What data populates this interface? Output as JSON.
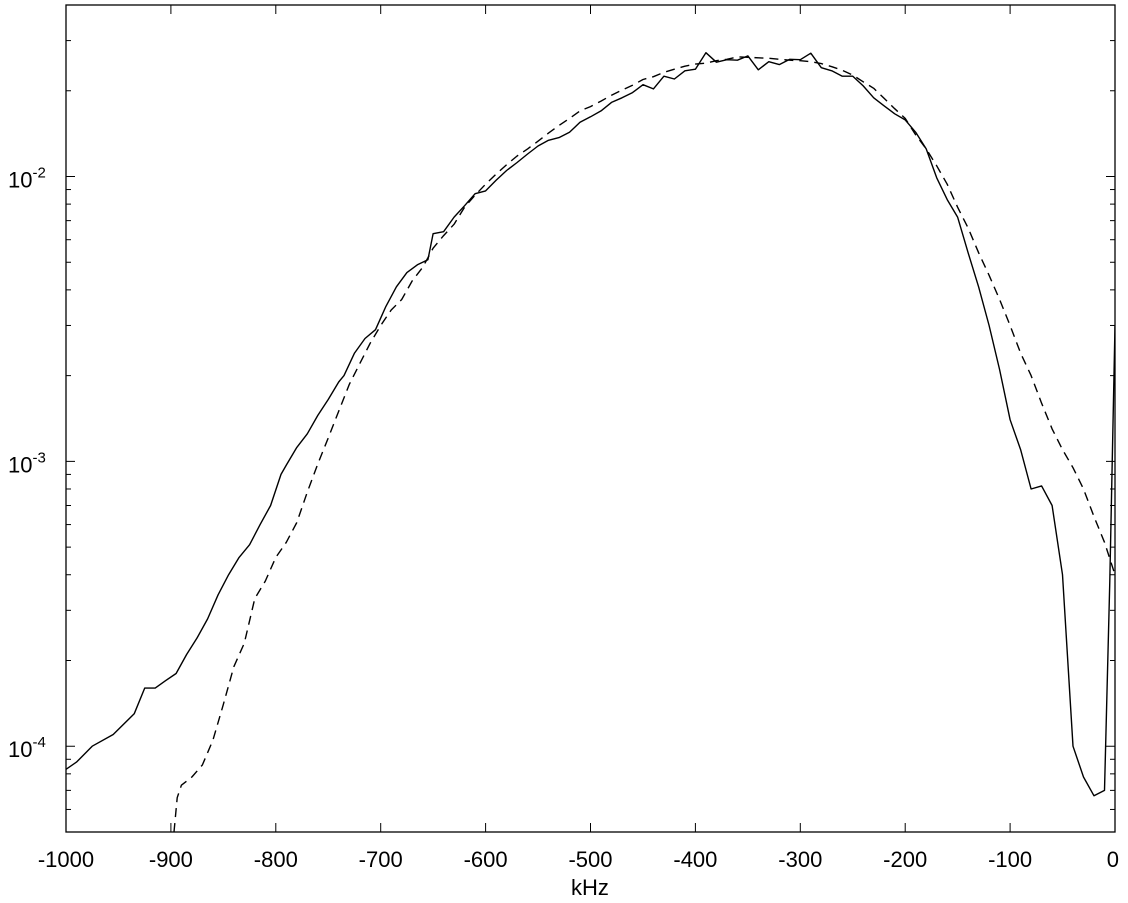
{
  "chart_data": {
    "type": "line",
    "title": "",
    "xlabel": "kHz",
    "ylabel": "",
    "xlim": [
      -1000,
      0
    ],
    "ylim": [
      5e-05,
      0.04
    ],
    "yscale": "log",
    "grid": false,
    "x_ticks": [
      {
        "value": -1000,
        "label": "-1000"
      },
      {
        "value": -900,
        "label": "-900"
      },
      {
        "value": -800,
        "label": "-800"
      },
      {
        "value": -700,
        "label": "-700"
      },
      {
        "value": -600,
        "label": "-600"
      },
      {
        "value": -500,
        "label": "-500"
      },
      {
        "value": -400,
        "label": "-400"
      },
      {
        "value": -300,
        "label": "-300"
      },
      {
        "value": -200,
        "label": "-200"
      },
      {
        "value": -100,
        "label": "-100"
      },
      {
        "value": 0,
        "label": "0"
      }
    ],
    "y_ticks": [
      {
        "value": 0.0001,
        "base": "10",
        "exp": "-4"
      },
      {
        "value": 0.001,
        "base": "10",
        "exp": "-3"
      },
      {
        "value": 0.01,
        "base": "10",
        "exp": "-2"
      }
    ],
    "series": [
      {
        "style": "solid",
        "color": "#000000",
        "x": [
          -1000,
          -990,
          -975,
          -955,
          -935,
          -925,
          -915,
          -905,
          -895,
          -885,
          -875,
          -865,
          -855,
          -845,
          -835,
          -825,
          -815,
          -805,
          -795,
          -790,
          -780,
          -770,
          -760,
          -750,
          -740,
          -735,
          -725,
          -715,
          -705,
          -695,
          -685,
          -675,
          -665,
          -655,
          -650,
          -640,
          -630,
          -620,
          -610,
          -600,
          -590,
          -580,
          -570,
          -560,
          -550,
          -540,
          -530,
          -520,
          -510,
          -500,
          -490,
          -480,
          -470,
          -460,
          -450,
          -440,
          -430,
          -420,
          -410,
          -400,
          -390,
          -380,
          -370,
          -360,
          -350,
          -340,
          -330,
          -320,
          -310,
          -300,
          -290,
          -280,
          -270,
          -260,
          -250,
          -240,
          -230,
          -220,
          -210,
          -200,
          -190,
          -180,
          -170,
          -160,
          -150,
          -140,
          -130,
          -120,
          -110,
          -100,
          -90,
          -80,
          -70,
          -60,
          -50,
          -40,
          -30,
          -20,
          -10,
          -5,
          0
        ],
        "y": [
          8.3e-05,
          8.8e-05,
          0.0001,
          0.00011,
          0.00013,
          0.00016,
          0.00016,
          0.00017,
          0.00018,
          0.00021,
          0.00024,
          0.00028,
          0.00034,
          0.0004,
          0.00046,
          0.00051,
          0.0006,
          0.0007,
          0.0009,
          0.00097,
          0.00112,
          0.00125,
          0.00145,
          0.00165,
          0.0019,
          0.002,
          0.0024,
          0.0027,
          0.0029,
          0.0035,
          0.0041,
          0.0046,
          0.0049,
          0.0051,
          0.0063,
          0.0064,
          0.0072,
          0.0079,
          0.0087,
          0.0089,
          0.0097,
          0.0105,
          0.0112,
          0.012,
          0.0128,
          0.0134,
          0.0137,
          0.0143,
          0.0155,
          0.0162,
          0.017,
          0.0182,
          0.0189,
          0.0197,
          0.021,
          0.0203,
          0.0225,
          0.022,
          0.0235,
          0.0238,
          0.0272,
          0.0252,
          0.0257,
          0.0256,
          0.0265,
          0.0237,
          0.0253,
          0.0247,
          0.0258,
          0.0257,
          0.0271,
          0.0241,
          0.0235,
          0.0225,
          0.0225,
          0.0208,
          0.0189,
          0.0177,
          0.0166,
          0.0158,
          0.0143,
          0.0125,
          0.0099,
          0.0083,
          0.0072,
          0.0054,
          0.0041,
          0.003,
          0.0021,
          0.0014,
          0.0011,
          0.0008,
          0.00082,
          0.0007,
          0.0004,
          0.0001,
          7.8e-05,
          6.7e-05,
          7e-05,
          0.00038,
          0.003
        ]
      },
      {
        "style": "dashed",
        "color": "#000000",
        "x": [
          -897,
          -894,
          -890,
          -880,
          -870,
          -860,
          -850,
          -840,
          -830,
          -820,
          -810,
          -800,
          -790,
          -780,
          -770,
          -760,
          -750,
          -740,
          -730,
          -720,
          -710,
          -700,
          -690,
          -680,
          -670,
          -660,
          -650,
          -640,
          -630,
          -620,
          -610,
          -600,
          -590,
          -580,
          -570,
          -560,
          -550,
          -540,
          -530,
          -520,
          -510,
          -500,
          -490,
          -480,
          -470,
          -460,
          -450,
          -440,
          -430,
          -420,
          -410,
          -400,
          -390,
          -380,
          -370,
          -360,
          -350,
          -340,
          -330,
          -320,
          -310,
          -300,
          -290,
          -280,
          -270,
          -260,
          -250,
          -240,
          -230,
          -220,
          -210,
          -200,
          -190,
          -180,
          -170,
          -160,
          -150,
          -140,
          -130,
          -120,
          -110,
          -100,
          -90,
          -80,
          -70,
          -60,
          -50,
          -40,
          -30,
          -20,
          -10,
          0
        ],
        "y": [
          5e-05,
          6.6e-05,
          7.3e-05,
          7.8e-05,
          8.6e-05,
          0.000105,
          0.00014,
          0.00019,
          0.00023,
          0.00033,
          0.00038,
          0.00046,
          0.00052,
          0.00061,
          0.00078,
          0.00098,
          0.00121,
          0.0015,
          0.00186,
          0.0022,
          0.0026,
          0.003,
          0.0034,
          0.0037,
          0.0043,
          0.0048,
          0.0056,
          0.0062,
          0.0068,
          0.0078,
          0.0086,
          0.0094,
          0.0102,
          0.011,
          0.0118,
          0.0125,
          0.0133,
          0.0142,
          0.0151,
          0.016,
          0.017,
          0.0176,
          0.0184,
          0.0193,
          0.0201,
          0.0209,
          0.0219,
          0.0224,
          0.0232,
          0.0238,
          0.0244,
          0.0248,
          0.025,
          0.0255,
          0.0258,
          0.0263,
          0.0262,
          0.0261,
          0.026,
          0.0258,
          0.0256,
          0.0255,
          0.0253,
          0.0249,
          0.0243,
          0.0236,
          0.0227,
          0.0215,
          0.0204,
          0.0188,
          0.0173,
          0.016,
          0.014,
          0.0125,
          0.0109,
          0.0094,
          0.0078,
          0.0066,
          0.0054,
          0.0045,
          0.0037,
          0.003,
          0.0024,
          0.002,
          0.0016,
          0.0013,
          0.0011,
          0.00095,
          0.0008,
          0.00064,
          0.00052,
          0.0004
        ]
      }
    ]
  }
}
